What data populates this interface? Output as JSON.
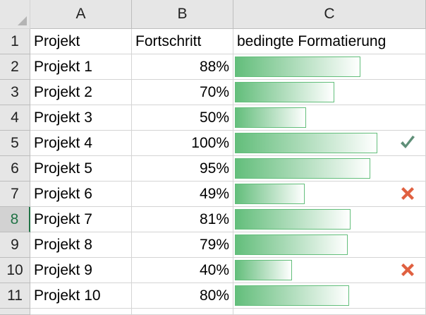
{
  "columns": [
    "A",
    "B",
    "C"
  ],
  "header_row": {
    "row_number": "1",
    "projekt": "Projekt",
    "fortschritt": "Fortschritt",
    "bedingte": "bedingte Formatierung"
  },
  "rows": [
    {
      "row": "2",
      "name": "Projekt 1",
      "progress_label": "88%",
      "progress": 0.88,
      "icon": "none"
    },
    {
      "row": "3",
      "name": "Projekt 2",
      "progress_label": "70%",
      "progress": 0.7,
      "icon": "none"
    },
    {
      "row": "4",
      "name": "Projekt 3",
      "progress_label": "50%",
      "progress": 0.5,
      "icon": "none"
    },
    {
      "row": "5",
      "name": "Projekt 4",
      "progress_label": "100%",
      "progress": 1.0,
      "icon": "checkmark-icon"
    },
    {
      "row": "6",
      "name": "Projekt 5",
      "progress_label": "95%",
      "progress": 0.95,
      "icon": "none"
    },
    {
      "row": "7",
      "name": "Projekt 6",
      "progress_label": "49%",
      "progress": 0.49,
      "icon": "cross-icon"
    },
    {
      "row": "8",
      "name": "Projekt 7",
      "progress_label": "81%",
      "progress": 0.81,
      "icon": "none"
    },
    {
      "row": "9",
      "name": "Projekt 8",
      "progress_label": "79%",
      "progress": 0.79,
      "icon": "none"
    },
    {
      "row": "10",
      "name": "Projekt 9",
      "progress_label": "40%",
      "progress": 0.4,
      "icon": "cross-icon"
    },
    {
      "row": "11",
      "name": "Projekt 10",
      "progress_label": "80%",
      "progress": 0.8,
      "icon": "none"
    }
  ],
  "selected_row": "8",
  "colors": {
    "bar": "#63be7b",
    "check": "#5f8f78",
    "cross": "#e06040",
    "selected_row_header": "#217346"
  }
}
